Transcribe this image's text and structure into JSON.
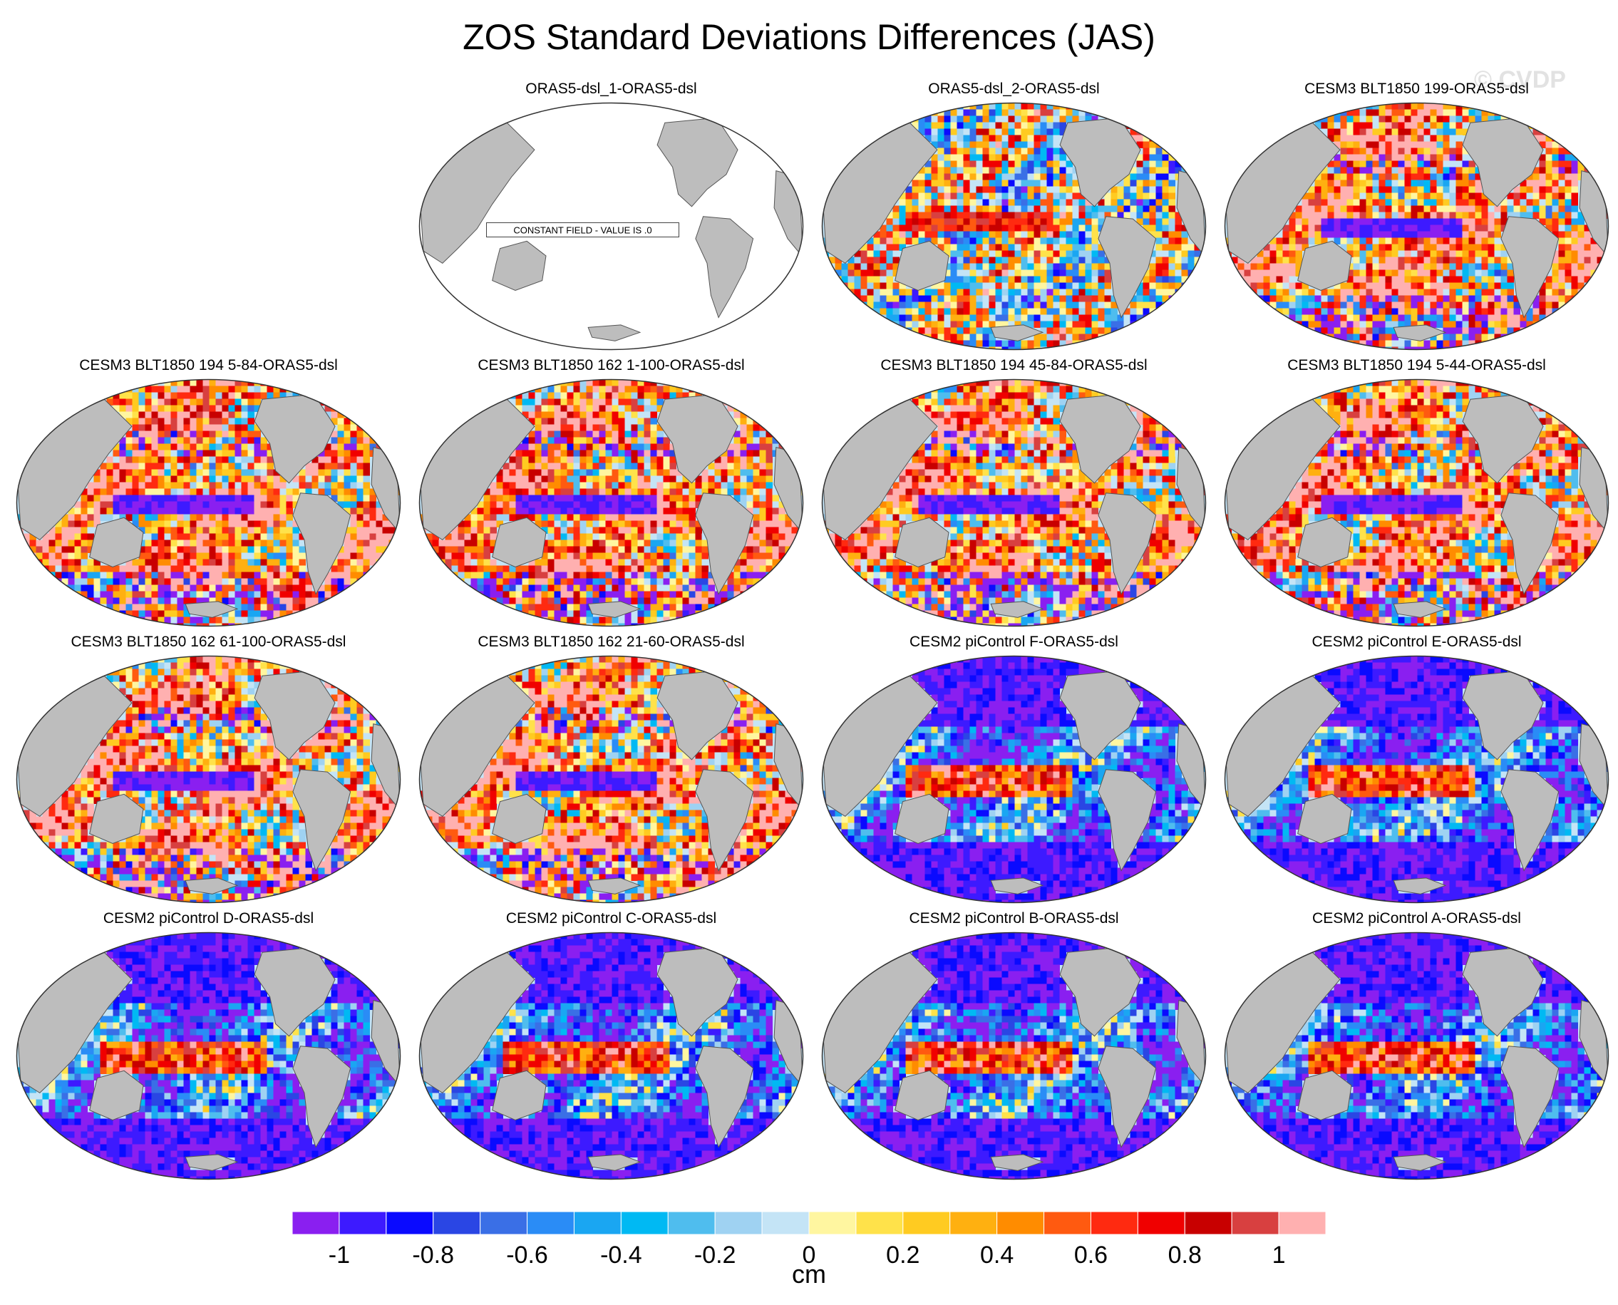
{
  "figure": {
    "title": "ZOS Standard Deviations Differences (JAS)",
    "watermark": "© CVDP"
  },
  "panels": [
    {
      "title": "ORAS5-dsl_1-ORAS5-dsl",
      "field": "constant",
      "constant_note": "CONSTANT FIELD - VALUE IS .0"
    },
    {
      "title": "ORAS5-dsl_2-ORAS5-dsl",
      "field": "mixed"
    },
    {
      "title": "CESM3 BLT1850 199-ORAS5-dsl",
      "field": "warm"
    },
    {
      "title": "CESM3 BLT1850 194 5-84-ORAS5-dsl",
      "field": "warm"
    },
    {
      "title": "CESM3 BLT1850 162 1-100-ORAS5-dsl",
      "field": "warm"
    },
    {
      "title": "CESM3 BLT1850 194 45-84-ORAS5-dsl",
      "field": "warm"
    },
    {
      "title": "CESM3 BLT1850 194 5-44-ORAS5-dsl",
      "field": "warm"
    },
    {
      "title": "CESM3 BLT1850 162 61-100-ORAS5-dsl",
      "field": "warm"
    },
    {
      "title": "CESM3 BLT1850 162 21-60-ORAS5-dsl",
      "field": "warm"
    },
    {
      "title": "CESM2 piControl F-ORAS5-dsl",
      "field": "cool"
    },
    {
      "title": "CESM2 piControl E-ORAS5-dsl",
      "field": "cool"
    },
    {
      "title": "CESM2 piControl D-ORAS5-dsl",
      "field": "cool"
    },
    {
      "title": "CESM2 piControl C-ORAS5-dsl",
      "field": "cool"
    },
    {
      "title": "CESM2 piControl B-ORAS5-dsl",
      "field": "cool"
    },
    {
      "title": "CESM2 piControl A-ORAS5-dsl",
      "field": "cool"
    }
  ],
  "colorbar": {
    "unit": "cm",
    "colors": [
      "#8a1ff0",
      "#3d1aff",
      "#0a0aff",
      "#2a46e4",
      "#3a6fe6",
      "#2a8cf6",
      "#1aa6f2",
      "#00b9f3",
      "#4fbdee",
      "#9fd2f2",
      "#c4e4f6",
      "#fff6a0",
      "#ffe24a",
      "#ffcb21",
      "#ffb010",
      "#ff8c00",
      "#ff5a10",
      "#ff2a10",
      "#f00000",
      "#c80000",
      "#d84040",
      "#ffb0b0"
    ],
    "tick_labels": [
      "-1",
      "-0.8",
      "-0.6",
      "-0.4",
      "-0.2",
      "0",
      "0.2",
      "0.4",
      "0.6",
      "0.8",
      "1"
    ],
    "tick_values": [
      -1,
      -0.8,
      -0.6,
      -0.4,
      -0.2,
      0,
      0.2,
      0.4,
      0.6,
      0.8,
      1
    ],
    "min": -1.1,
    "max": 1.1
  }
}
